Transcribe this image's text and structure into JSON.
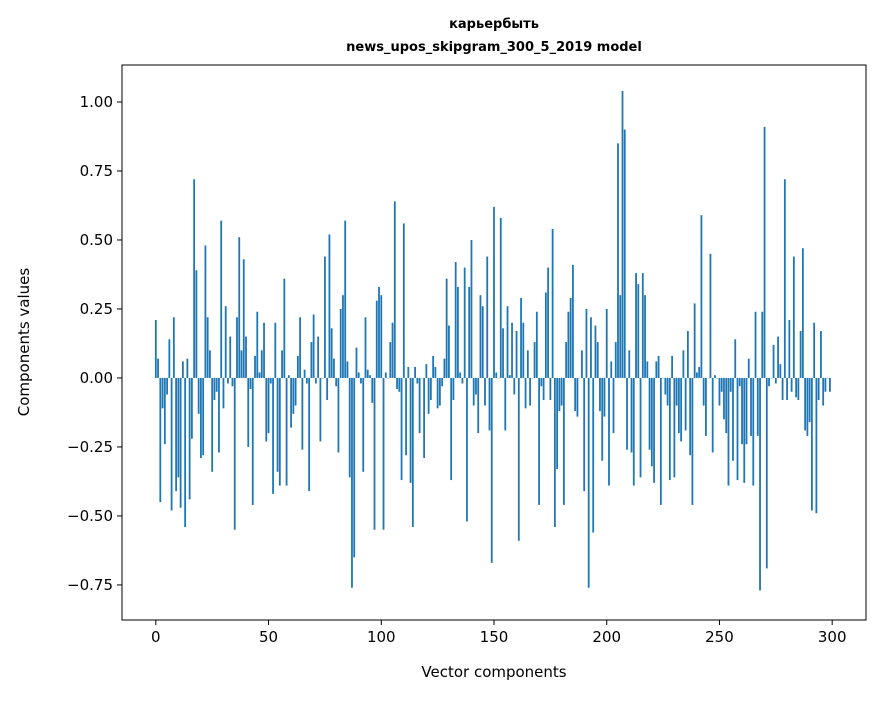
{
  "chart_data": {
    "type": "bar",
    "title": "карьербыть",
    "subtitle": "news_upos_skipgram_300_5_2019 model",
    "xlabel": "Vector components",
    "ylabel": "Components values",
    "xlim": [
      -15,
      315
    ],
    "ylim": [
      -0.877,
      1.134
    ],
    "xticks": [
      0,
      50,
      100,
      150,
      200,
      250,
      300
    ],
    "xtick_labels": [
      "0",
      "50",
      "100",
      "150",
      "200",
      "250",
      "300"
    ],
    "yticks": [
      -0.75,
      -0.5,
      -0.25,
      0,
      0.25,
      0.5,
      0.75,
      1.0
    ],
    "ytick_labels": [
      "−0.75",
      "−0.50",
      "−0.25",
      "0.00",
      "0.25",
      "0.50",
      "0.75",
      "1.00"
    ],
    "grid": false,
    "bar_color": "#1f77b4",
    "values": [
      0.21,
      0.07,
      -0.45,
      -0.11,
      -0.24,
      -0.06,
      0.14,
      -0.48,
      0.22,
      -0.41,
      -0.36,
      -0.47,
      0.06,
      -0.54,
      0.07,
      -0.44,
      -0.22,
      0.72,
      0.39,
      -0.13,
      -0.29,
      -0.28,
      0.48,
      0.22,
      0.1,
      -0.34,
      -0.08,
      -0.05,
      -0.27,
      0.57,
      -0.11,
      0.26,
      -0.02,
      0.15,
      -0.03,
      -0.55,
      0.22,
      0.51,
      0.1,
      0.43,
      0.15,
      -0.25,
      -0.04,
      -0.46,
      0.08,
      0.24,
      0.02,
      0.1,
      0.2,
      -0.23,
      -0.2,
      -0.02,
      -0.42,
      0.2,
      -0.34,
      -0.39,
      0.1,
      0.36,
      -0.39,
      0.01,
      -0.18,
      -0.13,
      -0.1,
      0.08,
      0.22,
      -0.26,
      0.03,
      -0.02,
      -0.41,
      0.13,
      0.23,
      -0.02,
      0.15,
      -0.23,
      0.0,
      0.44,
      -0.08,
      0.52,
      0.18,
      0.07,
      -0.03,
      -0.27,
      0.25,
      0.3,
      0.57,
      0.06,
      -0.36,
      -0.76,
      -0.65,
      0.11,
      0.02,
      -0.02,
      -0.34,
      0.22,
      0.03,
      0.01,
      -0.09,
      -0.55,
      0.28,
      0.33,
      0.3,
      -0.55,
      0.02,
      0.0,
      0.13,
      0.2,
      0.64,
      -0.04,
      -0.05,
      -0.37,
      0.56,
      -0.28,
      0.04,
      -0.38,
      -0.54,
      0.04,
      -0.02,
      -0.2,
      0.0,
      -0.29,
      0.05,
      -0.13,
      -0.08,
      0.08,
      0.04,
      -0.11,
      -0.1,
      -0.03,
      0.07,
      0.36,
      0.19,
      -0.37,
      -0.08,
      0.42,
      0.33,
      0.02,
      -0.02,
      0.4,
      -0.52,
      0.33,
      0.5,
      -0.1,
      -0.06,
      -0.2,
      0.3,
      0.26,
      -0.1,
      0.44,
      -0.19,
      -0.67,
      0.62,
      0.02,
      0.0,
      0.58,
      0.18,
      -0.19,
      0.26,
      0.01,
      0.2,
      -0.06,
      0.17,
      -0.59,
      0.29,
      0.2,
      -0.11,
      0.1,
      -0.1,
      0.0,
      0.13,
      0.24,
      -0.46,
      -0.03,
      -0.08,
      0.31,
      0.4,
      -0.08,
      0.54,
      -0.54,
      -0.33,
      -0.12,
      -0.1,
      -0.46,
      0.13,
      0.24,
      0.29,
      0.41,
      -0.12,
      -0.14,
      0.0,
      0.1,
      -0.41,
      0.25,
      -0.76,
      0.22,
      -0.56,
      0.19,
      0.13,
      -0.12,
      -0.3,
      -0.14,
      0.25,
      -0.39,
      0.06,
      -0.2,
      0.13,
      0.85,
      0.3,
      1.04,
      0.9,
      -0.26,
      0.1,
      -0.27,
      -0.39,
      0.38,
      0.34,
      -0.36,
      0.38,
      0.3,
      0.06,
      -0.26,
      -0.32,
      -0.38,
      0.06,
      0.08,
      -0.46,
      0.0,
      -0.06,
      -0.1,
      -0.37,
      0.08,
      -0.36,
      -0.1,
      -0.2,
      -0.23,
      0.1,
      -0.19,
      0.17,
      -0.28,
      -0.46,
      0.27,
      0.02,
      0.04,
      0.59,
      -0.1,
      -0.21,
      0.0,
      0.45,
      -0.27,
      0.01,
      0.0,
      -0.1,
      -0.05,
      -0.15,
      -0.2,
      -0.39,
      -0.05,
      -0.3,
      0.14,
      -0.37,
      -0.03,
      -0.24,
      -0.38,
      -0.24,
      0.07,
      -0.21,
      -0.39,
      0.24,
      -0.21,
      -0.77,
      0.24,
      0.91,
      -0.69,
      -0.03,
      0.0,
      0.12,
      -0.02,
      0.15,
      0.05,
      -0.08,
      0.72,
      -0.08,
      0.21,
      -0.05,
      0.44,
      -0.07,
      -0.08,
      0.17,
      0.47,
      -0.19,
      -0.21,
      -0.16,
      -0.48,
      0.2,
      -0.49,
      -0.08,
      0.17,
      -0.1,
      -0.05,
      0.0,
      -0.05
    ]
  }
}
